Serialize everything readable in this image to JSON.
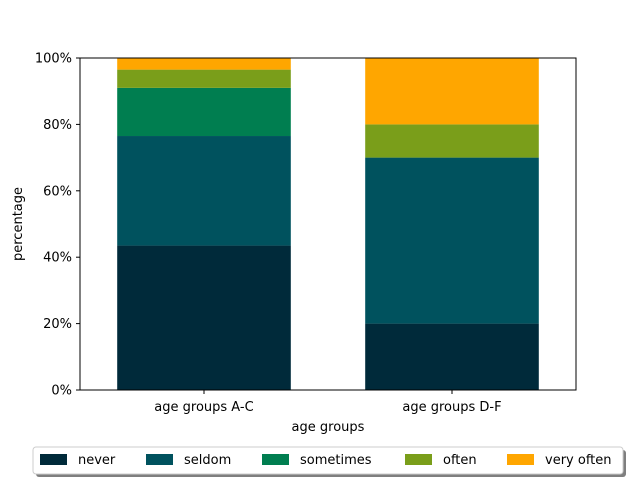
{
  "chart_data": {
    "type": "bar",
    "stacked": true,
    "categories": [
      "age groups A-C",
      "age groups D-F"
    ],
    "series": [
      {
        "name": "never",
        "color": "#002a3a",
        "values": [
          43.5,
          20
        ]
      },
      {
        "name": "seldom",
        "color": "#00525e",
        "values": [
          33,
          50
        ]
      },
      {
        "name": "sometimes",
        "color": "#007e50",
        "values": [
          14.5,
          0
        ]
      },
      {
        "name": "often",
        "color": "#7a9e1a",
        "values": [
          5.5,
          10
        ]
      },
      {
        "name": "very often",
        "color": "#ffa600",
        "values": [
          3.5,
          20
        ]
      }
    ],
    "xlabel": "age groups",
    "ylabel": "percentage",
    "ylim": [
      0,
      100
    ],
    "yticks": [
      0,
      20,
      40,
      60,
      80,
      100
    ],
    "ytick_labels": [
      "0%",
      "20%",
      "40%",
      "60%",
      "80%",
      "100%"
    ],
    "legend": {
      "placement": "bottom-center",
      "columns": 5,
      "shadow": true
    },
    "grid": false
  }
}
